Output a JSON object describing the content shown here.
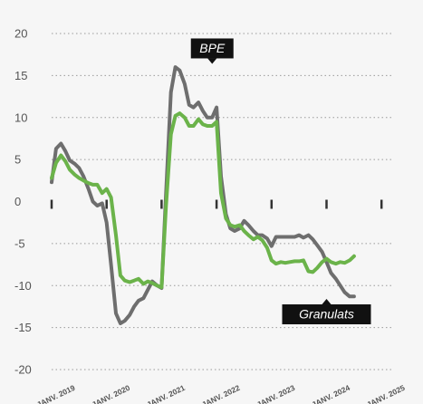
{
  "chart_data": {
    "type": "line",
    "ylim": [
      -20,
      20
    ],
    "yticks": [
      20,
      15,
      10,
      5,
      0,
      -5,
      -10,
      -15,
      -20
    ],
    "xrange": [
      2019.0,
      2025.3
    ],
    "xticks": [
      {
        "x": 2019.0,
        "label": "JANV. 2019"
      },
      {
        "x": 2020.0,
        "label": "JANV. 2020"
      },
      {
        "x": 2021.0,
        "label": "JANV. 2021"
      },
      {
        "x": 2022.0,
        "label": "JANV. 2022"
      },
      {
        "x": 2023.0,
        "label": "JANV. 2023"
      },
      {
        "x": 2024.0,
        "label": "JANV. 2024"
      },
      {
        "x": 2025.0,
        "label": "JANV. 2025"
      }
    ],
    "grid": true,
    "series": [
      {
        "name": "BPE",
        "color": "#6e6e6e",
        "points": [
          [
            2019.0,
            2.3
          ],
          [
            2019.08,
            6.3
          ],
          [
            2019.17,
            6.9
          ],
          [
            2019.25,
            6.0
          ],
          [
            2019.33,
            4.9
          ],
          [
            2019.42,
            4.5
          ],
          [
            2019.5,
            4.0
          ],
          [
            2019.58,
            3.0
          ],
          [
            2019.67,
            1.5
          ],
          [
            2019.75,
            0.0
          ],
          [
            2019.83,
            -0.5
          ],
          [
            2019.92,
            -0.2
          ],
          [
            2020.0,
            -2.5
          ],
          [
            2020.08,
            -7.5
          ],
          [
            2020.17,
            -13.3
          ],
          [
            2020.25,
            -14.5
          ],
          [
            2020.33,
            -14.2
          ],
          [
            2020.42,
            -13.5
          ],
          [
            2020.5,
            -12.5
          ],
          [
            2020.58,
            -11.8
          ],
          [
            2020.67,
            -11.5
          ],
          [
            2020.75,
            -10.5
          ],
          [
            2020.83,
            -9.5
          ],
          [
            2020.92,
            -10.0
          ],
          [
            2021.0,
            -10.3
          ],
          [
            2021.08,
            1.0
          ],
          [
            2021.17,
            13.0
          ],
          [
            2021.25,
            16.0
          ],
          [
            2021.33,
            15.6
          ],
          [
            2021.42,
            14.0
          ],
          [
            2021.5,
            11.5
          ],
          [
            2021.58,
            11.2
          ],
          [
            2021.67,
            11.8
          ],
          [
            2021.75,
            10.8
          ],
          [
            2021.83,
            10.0
          ],
          [
            2021.92,
            10.0
          ],
          [
            2022.0,
            11.2
          ],
          [
            2022.08,
            3.0
          ],
          [
            2022.17,
            -1.5
          ],
          [
            2022.25,
            -3.2
          ],
          [
            2022.33,
            -3.5
          ],
          [
            2022.42,
            -3.2
          ],
          [
            2022.5,
            -2.3
          ],
          [
            2022.58,
            -2.8
          ],
          [
            2022.67,
            -3.5
          ],
          [
            2022.75,
            -4.0
          ],
          [
            2022.83,
            -4.0
          ],
          [
            2022.92,
            -4.4
          ],
          [
            2023.0,
            -5.3
          ],
          [
            2023.08,
            -4.2
          ],
          [
            2023.17,
            -4.2
          ],
          [
            2023.25,
            -4.2
          ],
          [
            2023.33,
            -4.2
          ],
          [
            2023.42,
            -4.2
          ],
          [
            2023.5,
            -4.0
          ],
          [
            2023.58,
            -4.3
          ],
          [
            2023.67,
            -4.0
          ],
          [
            2023.75,
            -4.5
          ],
          [
            2023.83,
            -5.2
          ],
          [
            2023.92,
            -6.0
          ],
          [
            2024.0,
            -7.2
          ],
          [
            2024.08,
            -8.5
          ],
          [
            2024.17,
            -9.2
          ],
          [
            2024.25,
            -10.0
          ],
          [
            2024.33,
            -10.8
          ],
          [
            2024.42,
            -11.3
          ],
          [
            2024.5,
            -11.3
          ]
        ]
      },
      {
        "name": "Granulats",
        "color": "#6bb34a",
        "points": [
          [
            2019.0,
            2.8
          ],
          [
            2019.08,
            4.6
          ],
          [
            2019.17,
            5.5
          ],
          [
            2019.25,
            4.8
          ],
          [
            2019.33,
            3.8
          ],
          [
            2019.42,
            3.2
          ],
          [
            2019.5,
            2.8
          ],
          [
            2019.58,
            2.5
          ],
          [
            2019.67,
            2.2
          ],
          [
            2019.75,
            2.0
          ],
          [
            2019.83,
            2.0
          ],
          [
            2019.92,
            1.0
          ],
          [
            2020.0,
            1.5
          ],
          [
            2020.08,
            0.5
          ],
          [
            2020.17,
            -4.0
          ],
          [
            2020.25,
            -8.8
          ],
          [
            2020.33,
            -9.4
          ],
          [
            2020.42,
            -9.6
          ],
          [
            2020.5,
            -9.4
          ],
          [
            2020.58,
            -9.2
          ],
          [
            2020.67,
            -9.8
          ],
          [
            2020.75,
            -9.5
          ],
          [
            2020.83,
            -9.7
          ],
          [
            2020.92,
            -10.0
          ],
          [
            2021.0,
            -10.2
          ],
          [
            2021.08,
            -0.5
          ],
          [
            2021.17,
            8.0
          ],
          [
            2021.25,
            10.2
          ],
          [
            2021.33,
            10.5
          ],
          [
            2021.42,
            10.0
          ],
          [
            2021.5,
            9.0
          ],
          [
            2021.58,
            9.0
          ],
          [
            2021.67,
            9.8
          ],
          [
            2021.75,
            9.2
          ],
          [
            2021.83,
            9.0
          ],
          [
            2021.92,
            9.0
          ],
          [
            2022.0,
            9.5
          ],
          [
            2022.08,
            1.0
          ],
          [
            2022.17,
            -2.0
          ],
          [
            2022.25,
            -2.8
          ],
          [
            2022.33,
            -3.0
          ],
          [
            2022.42,
            -2.8
          ],
          [
            2022.5,
            -3.5
          ],
          [
            2022.58,
            -4.0
          ],
          [
            2022.67,
            -4.5
          ],
          [
            2022.75,
            -4.2
          ],
          [
            2022.83,
            -4.6
          ],
          [
            2022.92,
            -5.5
          ],
          [
            2023.0,
            -7.0
          ],
          [
            2023.08,
            -7.4
          ],
          [
            2023.17,
            -7.2
          ],
          [
            2023.25,
            -7.3
          ],
          [
            2023.33,
            -7.2
          ],
          [
            2023.42,
            -7.1
          ],
          [
            2023.5,
            -7.1
          ],
          [
            2023.58,
            -7.0
          ],
          [
            2023.67,
            -8.3
          ],
          [
            2023.75,
            -8.4
          ],
          [
            2023.83,
            -7.9
          ],
          [
            2023.92,
            -7.2
          ],
          [
            2024.0,
            -6.8
          ],
          [
            2024.08,
            -7.2
          ],
          [
            2024.17,
            -7.4
          ],
          [
            2024.25,
            -7.2
          ],
          [
            2024.33,
            -7.3
          ],
          [
            2024.42,
            -7.0
          ],
          [
            2024.5,
            -6.5
          ]
        ]
      }
    ],
    "annotations": [
      {
        "text": "BPE",
        "x": 2021.92,
        "y": 16.5,
        "anchor": "bottom"
      },
      {
        "text": "Granulats",
        "x": 2024.0,
        "y": -11.7,
        "anchor": "top"
      }
    ]
  }
}
